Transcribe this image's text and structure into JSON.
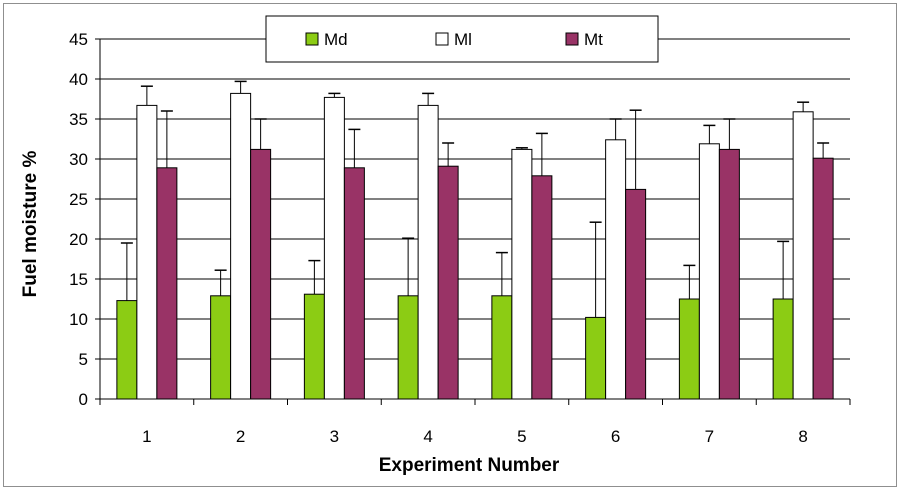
{
  "chart_data": {
    "type": "bar",
    "title": "",
    "xlabel": "Experiment Number",
    "ylabel": "Fuel moisture %",
    "categories": [
      "1",
      "2",
      "3",
      "4",
      "5",
      "6",
      "7",
      "8"
    ],
    "ylim": [
      0,
      45
    ],
    "yticks": [
      "0",
      "5",
      "10",
      "15",
      "20",
      "25",
      "30",
      "35",
      "40",
      "45"
    ],
    "grid": true,
    "legend_position": "top",
    "series": [
      {
        "name": "Md",
        "color": "#8ccc14",
        "values": [
          12.3,
          12.9,
          13.1,
          12.9,
          12.9,
          10.2,
          12.5,
          12.5
        ],
        "error": [
          7.2,
          3.2,
          4.2,
          7.2,
          5.4,
          11.9,
          4.2,
          7.2
        ]
      },
      {
        "name": "Ml",
        "color": "#ffffff",
        "values": [
          36.7,
          38.2,
          37.7,
          36.7,
          31.2,
          32.4,
          31.9,
          35.9
        ],
        "error": [
          2.4,
          1.5,
          0.5,
          1.5,
          0.2,
          2.6,
          2.3,
          1.2
        ]
      },
      {
        "name": "Mt",
        "color": "#993366",
        "values": [
          28.9,
          31.2,
          28.9,
          29.1,
          27.9,
          26.2,
          31.2,
          30.1
        ],
        "error": [
          7.1,
          3.8,
          4.8,
          2.9,
          5.3,
          9.9,
          3.8,
          1.9
        ]
      }
    ]
  }
}
